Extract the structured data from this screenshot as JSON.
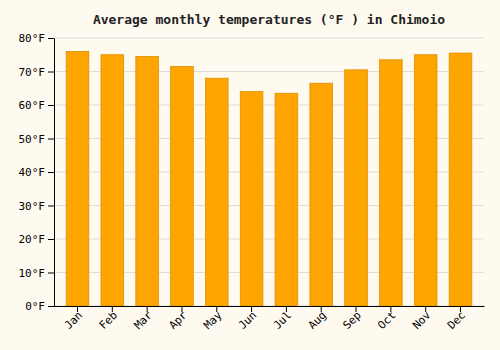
{
  "chart_data": {
    "type": "bar",
    "title": "Average monthly temperatures (°F ) in Chimoio",
    "categories": [
      "Jan",
      "Feb",
      "Mar",
      "Apr",
      "May",
      "Jun",
      "Jul",
      "Aug",
      "Sep",
      "Oct",
      "Nov",
      "Dec"
    ],
    "values": [
      76,
      75,
      74.5,
      71.5,
      68,
      64,
      63.5,
      66.5,
      70.5,
      73.5,
      75,
      75.5
    ],
    "color": "#FFA500",
    "ylim": [
      0,
      80
    ],
    "yticks": [
      {
        "value": 0,
        "label": "0°F"
      },
      {
        "value": 10,
        "label": "10°F"
      },
      {
        "value": 20,
        "label": "20°F"
      },
      {
        "value": 30,
        "label": "30°F"
      },
      {
        "value": 40,
        "label": "40°F"
      },
      {
        "value": 50,
        "label": "50°F"
      },
      {
        "value": 60,
        "label": "60°F"
      },
      {
        "value": 70,
        "label": "70°F"
      },
      {
        "value": 80,
        "label": "80°F"
      }
    ],
    "grid": true
  }
}
